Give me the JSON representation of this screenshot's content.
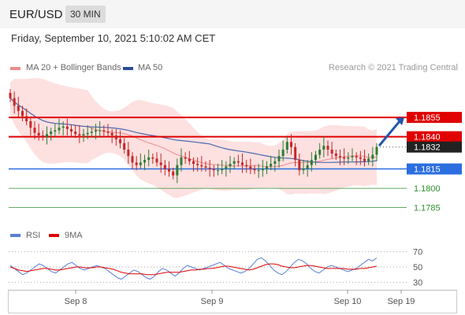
{
  "header": {
    "symbol": "EUR/USD",
    "timeframe": "30 MIN",
    "timestamp": "Friday, September 10, 2021 5:10:02 AM CET"
  },
  "legend": {
    "ma_bb": "MA 20 + Bollinger Bands",
    "ma50": "MA 50",
    "rsi": "RSI",
    "ma9": "9MA",
    "copyright": "Research © 2021 Trading Central"
  },
  "colors": {
    "bull": "#2e7d32",
    "bear": "#c62828",
    "band": "#fcd6d6",
    "ma20": "#f08a8a",
    "ma50": "#4a6bb0",
    "resistance": "#e00000",
    "support": "#2a6ee0",
    "target": "#2d8f2d",
    "arrow": "#2255aa",
    "rsi": "#5b7fd6",
    "ma9": "#e00000"
  },
  "chart_data": [
    {
      "type": "candlestick",
      "x_ticks": [
        "Sep 8",
        "Sep 9",
        "Sep 10",
        "Sep 19"
      ],
      "ylim": [
        1.1775,
        1.1885
      ],
      "price_levels": [
        {
          "label": "1.1855",
          "value": 1.1855,
          "kind": "resistance"
        },
        {
          "label": "1.1840",
          "value": 1.184,
          "kind": "resistance"
        },
        {
          "label": "1.1832",
          "value": 1.1832,
          "kind": "last"
        },
        {
          "label": "1.1815",
          "value": 1.1815,
          "kind": "support"
        },
        {
          "label": "1.1800",
          "value": 1.18,
          "kind": "target"
        },
        {
          "label": "1.1785",
          "value": 1.1785,
          "kind": "target"
        }
      ],
      "close": [
        1.187,
        1.1864,
        1.186,
        1.1856,
        1.1852,
        1.1847,
        1.1843,
        1.1841,
        1.184,
        1.1842,
        1.1844,
        1.1845,
        1.1847,
        1.1848,
        1.1846,
        1.1844,
        1.1842,
        1.1841,
        1.1842,
        1.1843,
        1.1844,
        1.1845,
        1.1845,
        1.1844,
        1.1843,
        1.1841,
        1.1838,
        1.1835,
        1.183,
        1.1825,
        1.182,
        1.1818,
        1.182,
        1.1822,
        1.1824,
        1.1823,
        1.182,
        1.1818,
        1.1815,
        1.1813,
        1.181,
        1.1818,
        1.1824,
        1.1823,
        1.1821,
        1.1819,
        1.1818,
        1.1817,
        1.1816,
        1.1815,
        1.1814,
        1.1814,
        1.1815,
        1.1817,
        1.1819,
        1.1821,
        1.182,
        1.1818,
        1.1817,
        1.1815,
        1.1814,
        1.1814,
        1.1815,
        1.1817,
        1.1819,
        1.1821,
        1.1825,
        1.183,
        1.1836,
        1.1832,
        1.1822,
        1.1814,
        1.1815,
        1.1818,
        1.1822,
        1.1826,
        1.183,
        1.1833,
        1.183,
        1.1827,
        1.1825,
        1.1824,
        1.1823,
        1.1824,
        1.1825,
        1.1824,
        1.1823,
        1.1821,
        1.1823,
        1.1826,
        1.1832
      ],
      "rsi": {
        "levels": [
          70,
          50,
          30
        ],
        "ylim": [
          20,
          80
        ],
        "rsi_values": [
          52,
          48,
          44,
          40,
          42,
          46,
          50,
          54,
          52,
          48,
          44,
          42,
          46,
          50,
          54,
          56,
          52,
          48,
          46,
          48,
          50,
          52,
          50,
          48,
          44,
          40,
          36,
          34,
          38,
          42,
          46,
          44,
          40,
          36,
          34,
          38,
          44,
          48,
          46,
          42,
          38,
          42,
          48,
          52,
          50,
          48,
          46,
          48,
          50,
          52,
          54,
          56,
          52,
          48,
          46,
          44,
          42,
          44,
          48,
          54,
          60,
          62,
          58,
          52,
          46,
          42,
          40,
          44,
          50,
          56,
          60,
          58,
          54,
          48,
          44,
          42,
          46,
          50,
          52,
          50,
          48,
          46,
          44,
          46,
          48,
          52,
          56,
          60,
          58,
          62
        ],
        "ma9_values": [
          50,
          48,
          46,
          45,
          44,
          45,
          46,
          47,
          48,
          48,
          47,
          46,
          46,
          47,
          48,
          49,
          50,
          50,
          49,
          49,
          49,
          50,
          50,
          49,
          48,
          47,
          45,
          43,
          42,
          41,
          41,
          41,
          41,
          40,
          40,
          40,
          41,
          42,
          43,
          43,
          43,
          43,
          44,
          45,
          46,
          46,
          47,
          47,
          48,
          48,
          49,
          50,
          51,
          51,
          50,
          49,
          48,
          47,
          46,
          47,
          49,
          51,
          53,
          54,
          54,
          53,
          51,
          50,
          49,
          49,
          50,
          51,
          52,
          52,
          51,
          50,
          49,
          48,
          48,
          48,
          48,
          48,
          47,
          47,
          47,
          48,
          48,
          49,
          50,
          51
        ]
      }
    }
  ]
}
